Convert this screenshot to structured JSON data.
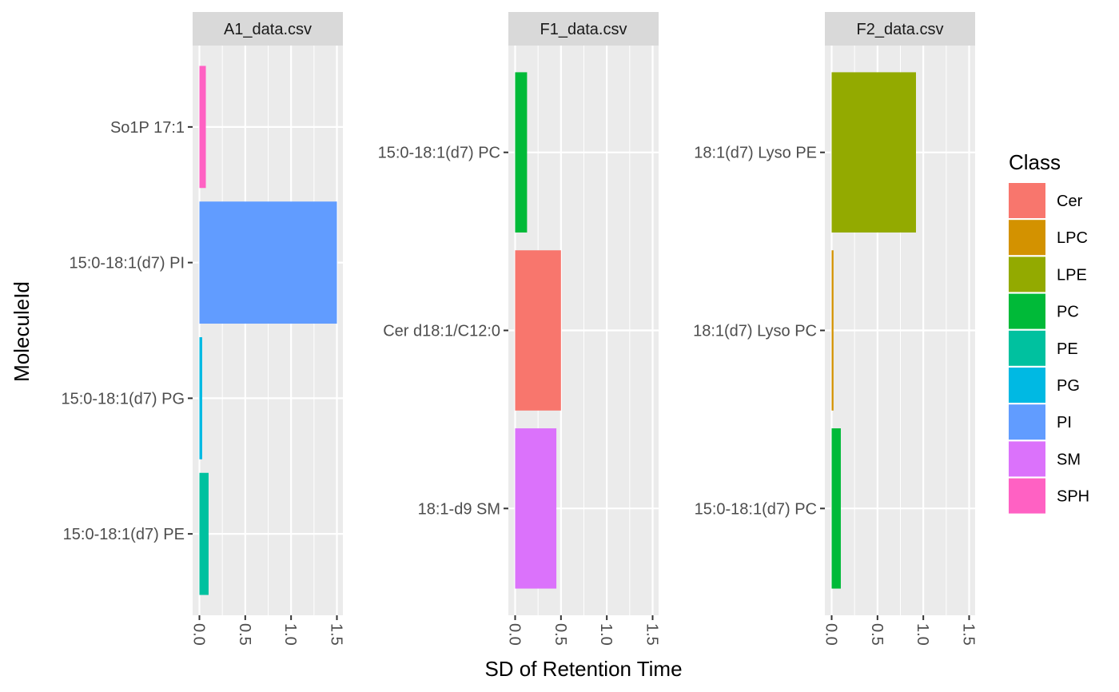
{
  "chart_data": {
    "type": "bar",
    "orientation": "horizontal",
    "xlabel": "SD of Retention Time",
    "ylabel": "MoleculeId",
    "xlim": [
      0,
      1.5
    ],
    "xticks": [
      "0.0",
      "0.5",
      "1.0",
      "1.5"
    ],
    "grid": true,
    "legend": {
      "title": "Class",
      "placement": "right",
      "entries": [
        {
          "name": "Cer",
          "color": "#F8766D"
        },
        {
          "name": "LPC",
          "color": "#D39200"
        },
        {
          "name": "LPE",
          "color": "#93AA00"
        },
        {
          "name": "PC",
          "color": "#00BA38"
        },
        {
          "name": "PE",
          "color": "#00C19F"
        },
        {
          "name": "PG",
          "color": "#00B9E3"
        },
        {
          "name": "PI",
          "color": "#619CFF"
        },
        {
          "name": "SM",
          "color": "#DB72FB"
        },
        {
          "name": "SPH",
          "color": "#FF61C3"
        }
      ]
    },
    "panels": [
      {
        "title": "A1_data.csv",
        "bars": [
          {
            "label": "So1P 17:1",
            "value": 0.07,
            "class": "SPH"
          },
          {
            "label": "15:0-18:1(d7) PI",
            "value": 1.5,
            "class": "PI"
          },
          {
            "label": "15:0-18:1(d7) PG",
            "value": 0.03,
            "class": "PG"
          },
          {
            "label": "15:0-18:1(d7) PE",
            "value": 0.1,
            "class": "PE"
          }
        ]
      },
      {
        "title": "F1_data.csv",
        "bars": [
          {
            "label": "15:0-18:1(d7) PC",
            "value": 0.13,
            "class": "PC"
          },
          {
            "label": "Cer d18:1/C12:0",
            "value": 0.5,
            "class": "Cer"
          },
          {
            "label": "18:1-d9 SM",
            "value": 0.45,
            "class": "SM"
          }
        ]
      },
      {
        "title": "F2_data.csv",
        "bars": [
          {
            "label": "18:1(d7) Lyso PE",
            "value": 0.92,
            "class": "LPE"
          },
          {
            "label": "18:1(d7) Lyso PC",
            "value": 0.02,
            "class": "LPC"
          },
          {
            "label": "15:0-18:1(d7) PC",
            "value": 0.1,
            "class": "PC"
          }
        ]
      }
    ]
  }
}
